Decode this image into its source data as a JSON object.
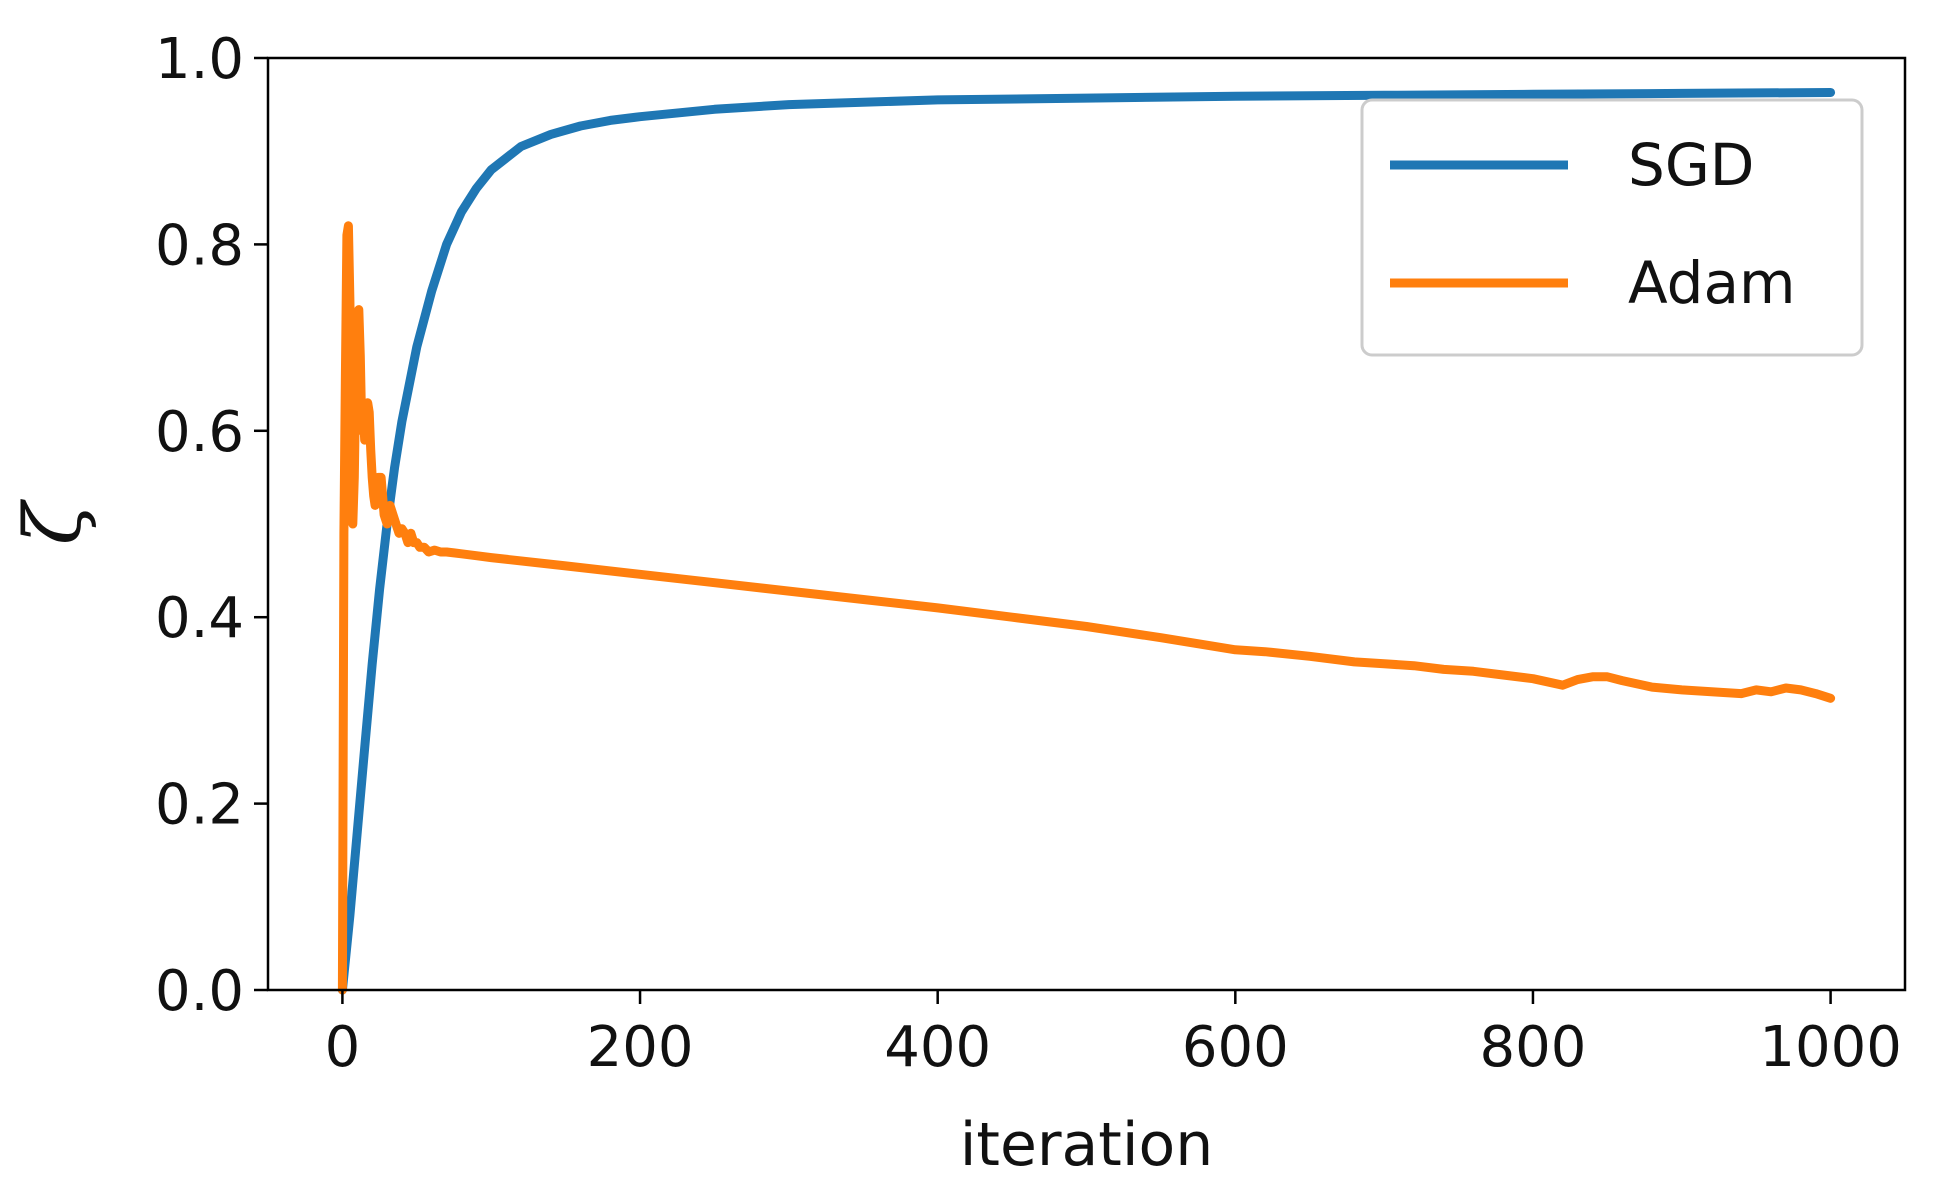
{
  "chart_data": {
    "type": "line",
    "title": "",
    "xlabel": "iteration",
    "ylabel": "ζ",
    "xlim": [
      -50,
      1050
    ],
    "ylim": [
      0.0,
      1.0
    ],
    "xticks": [
      0,
      200,
      400,
      600,
      800,
      1000
    ],
    "yticks": [
      0.0,
      0.2,
      0.4,
      0.6,
      0.8,
      1.0
    ],
    "xtick_labels": [
      "0",
      "200",
      "400",
      "600",
      "800",
      "1000"
    ],
    "ytick_labels": [
      "0.0",
      "0.2",
      "0.4",
      "0.6",
      "0.8",
      "1.0"
    ],
    "grid": false,
    "legend_position": "top-right",
    "series": [
      {
        "name": "SGD",
        "color": "#1f77b4",
        "x": [
          0,
          5,
          10,
          15,
          20,
          25,
          30,
          35,
          40,
          50,
          60,
          70,
          80,
          90,
          100,
          120,
          140,
          160,
          180,
          200,
          250,
          300,
          400,
          500,
          600,
          700,
          800,
          900,
          1000
        ],
        "y": [
          0.0,
          0.08,
          0.17,
          0.26,
          0.35,
          0.43,
          0.5,
          0.56,
          0.61,
          0.69,
          0.75,
          0.8,
          0.835,
          0.86,
          0.88,
          0.905,
          0.918,
          0.927,
          0.933,
          0.937,
          0.945,
          0.95,
          0.955,
          0.957,
          0.959,
          0.96,
          0.961,
          0.962,
          0.963
        ]
      },
      {
        "name": "Adam",
        "color": "#ff7f0e",
        "x": [
          0,
          1,
          2,
          3,
          4,
          5,
          6,
          7,
          8,
          9,
          10,
          11,
          12,
          13,
          14,
          15,
          16,
          17,
          18,
          19,
          20,
          21,
          22,
          24,
          26,
          28,
          30,
          32,
          34,
          36,
          38,
          40,
          42,
          44,
          46,
          48,
          50,
          52,
          55,
          58,
          62,
          66,
          70,
          75,
          80,
          90,
          100,
          150,
          200,
          250,
          300,
          350,
          400,
          450,
          500,
          550,
          600,
          620,
          650,
          680,
          700,
          720,
          740,
          760,
          780,
          800,
          820,
          830,
          840,
          850,
          860,
          880,
          900,
          920,
          940,
          950,
          960,
          970,
          980,
          990,
          1000
        ],
        "y": [
          0.0,
          0.49,
          0.66,
          0.81,
          0.82,
          0.74,
          0.63,
          0.5,
          0.55,
          0.66,
          0.72,
          0.73,
          0.68,
          0.6,
          0.62,
          0.59,
          0.6,
          0.63,
          0.62,
          0.58,
          0.55,
          0.53,
          0.52,
          0.55,
          0.55,
          0.51,
          0.5,
          0.52,
          0.51,
          0.5,
          0.49,
          0.495,
          0.49,
          0.48,
          0.49,
          0.48,
          0.48,
          0.475,
          0.475,
          0.47,
          0.472,
          0.47,
          0.47,
          0.469,
          0.468,
          0.466,
          0.464,
          0.455,
          0.446,
          0.437,
          0.428,
          0.419,
          0.41,
          0.4,
          0.39,
          0.378,
          0.365,
          0.363,
          0.358,
          0.352,
          0.35,
          0.348,
          0.344,
          0.342,
          0.338,
          0.334,
          0.327,
          0.333,
          0.336,
          0.336,
          0.332,
          0.325,
          0.322,
          0.32,
          0.318,
          0.322,
          0.32,
          0.324,
          0.322,
          0.318,
          0.313
        ]
      }
    ]
  }
}
